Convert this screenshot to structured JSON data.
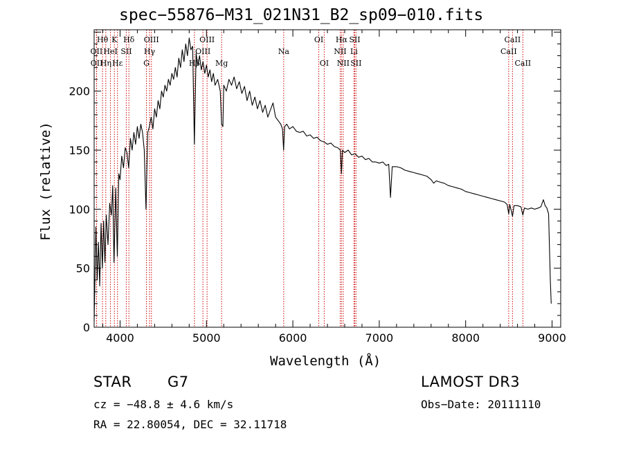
{
  "chart_data": {
    "type": "line",
    "title": "spec−55876−M31_021N31_B2_sp09−010.fits",
    "xlabel": "Wavelength (Å)",
    "ylabel": "Flux (relative)",
    "xlim": [
      3700,
      9100
    ],
    "ylim": [
      0,
      252
    ],
    "x_ticks": [
      4000,
      5000,
      6000,
      7000,
      8000,
      9000
    ],
    "y_ticks": [
      0,
      50,
      100,
      150,
      200
    ],
    "grid": false,
    "series": [
      {
        "name": "flux",
        "points": [
          [
            3700,
            5
          ],
          [
            3720,
            85
          ],
          [
            3735,
            40
          ],
          [
            3750,
            72
          ],
          [
            3765,
            35
          ],
          [
            3780,
            88
          ],
          [
            3795,
            50
          ],
          [
            3810,
            90
          ],
          [
            3825,
            55
          ],
          [
            3840,
            95
          ],
          [
            3860,
            70
          ],
          [
            3880,
            105
          ],
          [
            3900,
            95
          ],
          [
            3915,
            120
          ],
          [
            3930,
            55
          ],
          [
            3950,
            118
          ],
          [
            3968,
            60
          ],
          [
            3985,
            130
          ],
          [
            4000,
            125
          ],
          [
            4020,
            145
          ],
          [
            4040,
            135
          ],
          [
            4060,
            152
          ],
          [
            4080,
            148
          ],
          [
            4100,
            135
          ],
          [
            4120,
            160
          ],
          [
            4140,
            150
          ],
          [
            4160,
            165
          ],
          [
            4180,
            155
          ],
          [
            4200,
            170
          ],
          [
            4220,
            160
          ],
          [
            4240,
            172
          ],
          [
            4260,
            165
          ],
          [
            4280,
            150
          ],
          [
            4300,
            100
          ],
          [
            4320,
            165
          ],
          [
            4340,
            170
          ],
          [
            4360,
            178
          ],
          [
            4380,
            168
          ],
          [
            4400,
            185
          ],
          [
            4420,
            178
          ],
          [
            4440,
            192
          ],
          [
            4460,
            185
          ],
          [
            4480,
            200
          ],
          [
            4500,
            195
          ],
          [
            4520,
            205
          ],
          [
            4540,
            200
          ],
          [
            4560,
            210
          ],
          [
            4580,
            205
          ],
          [
            4600,
            215
          ],
          [
            4620,
            210
          ],
          [
            4640,
            220
          ],
          [
            4660,
            212
          ],
          [
            4680,
            228
          ],
          [
            4700,
            220
          ],
          [
            4720,
            235
          ],
          [
            4740,
            225
          ],
          [
            4760,
            240
          ],
          [
            4780,
            230
          ],
          [
            4800,
            245
          ],
          [
            4820,
            235
          ],
          [
            4840,
            238
          ],
          [
            4860,
            155
          ],
          [
            4880,
            232
          ],
          [
            4900,
            222
          ],
          [
            4920,
            230
          ],
          [
            4940,
            218
          ],
          [
            4960,
            225
          ],
          [
            4980,
            215
          ],
          [
            5000,
            222
          ],
          [
            5020,
            212
          ],
          [
            5040,
            218
          ],
          [
            5060,
            208
          ],
          [
            5080,
            215
          ],
          [
            5100,
            205
          ],
          [
            5130,
            210
          ],
          [
            5160,
            200
          ],
          [
            5175,
            172
          ],
          [
            5190,
            170
          ],
          [
            5200,
            205
          ],
          [
            5230,
            200
          ],
          [
            5260,
            210
          ],
          [
            5290,
            205
          ],
          [
            5320,
            212
          ],
          [
            5350,
            202
          ],
          [
            5380,
            208
          ],
          [
            5410,
            198
          ],
          [
            5440,
            204
          ],
          [
            5470,
            192
          ],
          [
            5500,
            200
          ],
          [
            5530,
            188
          ],
          [
            5560,
            195
          ],
          [
            5590,
            185
          ],
          [
            5620,
            192
          ],
          [
            5650,
            182
          ],
          [
            5680,
            188
          ],
          [
            5710,
            178
          ],
          [
            5740,
            184
          ],
          [
            5770,
            190
          ],
          [
            5800,
            178
          ],
          [
            5830,
            175
          ],
          [
            5860,
            172
          ],
          [
            5880,
            168
          ],
          [
            5893,
            150
          ],
          [
            5905,
            170
          ],
          [
            5930,
            172
          ],
          [
            5960,
            168
          ],
          [
            6000,
            170
          ],
          [
            6040,
            166
          ],
          [
            6080,
            165
          ],
          [
            6120,
            166
          ],
          [
            6160,
            162
          ],
          [
            6200,
            163
          ],
          [
            6240,
            160
          ],
          [
            6280,
            161
          ],
          [
            6320,
            158
          ],
          [
            6360,
            157
          ],
          [
            6400,
            155
          ],
          [
            6440,
            156
          ],
          [
            6480,
            153
          ],
          [
            6520,
            152
          ],
          [
            6550,
            150
          ],
          [
            6563,
            130
          ],
          [
            6575,
            150
          ],
          [
            6600,
            148
          ],
          [
            6640,
            150
          ],
          [
            6680,
            146
          ],
          [
            6720,
            147
          ],
          [
            6760,
            144
          ],
          [
            6800,
            145
          ],
          [
            6840,
            142
          ],
          [
            6880,
            143
          ],
          [
            6920,
            140
          ],
          [
            6960,
            140
          ],
          [
            7000,
            139
          ],
          [
            7040,
            140
          ],
          [
            7080,
            137
          ],
          [
            7110,
            138
          ],
          [
            7130,
            110
          ],
          [
            7150,
            136
          ],
          [
            7200,
            136
          ],
          [
            7250,
            135
          ],
          [
            7300,
            133
          ],
          [
            7350,
            132
          ],
          [
            7400,
            131
          ],
          [
            7450,
            130
          ],
          [
            7500,
            129
          ],
          [
            7550,
            128
          ],
          [
            7600,
            125
          ],
          [
            7630,
            122
          ],
          [
            7660,
            124
          ],
          [
            7700,
            123
          ],
          [
            7750,
            122
          ],
          [
            7800,
            120
          ],
          [
            7850,
            119
          ],
          [
            7900,
            118
          ],
          [
            7950,
            117
          ],
          [
            8000,
            115
          ],
          [
            8050,
            114
          ],
          [
            8100,
            113
          ],
          [
            8150,
            112
          ],
          [
            8200,
            111
          ],
          [
            8250,
            110
          ],
          [
            8300,
            109
          ],
          [
            8350,
            108
          ],
          [
            8400,
            107
          ],
          [
            8450,
            106
          ],
          [
            8480,
            104
          ],
          [
            8498,
            96
          ],
          [
            8510,
            104
          ],
          [
            8542,
            94
          ],
          [
            8560,
            103
          ],
          [
            8600,
            103
          ],
          [
            8640,
            102
          ],
          [
            8662,
            95
          ],
          [
            8680,
            101
          ],
          [
            8720,
            100
          ],
          [
            8760,
            101
          ],
          [
            8800,
            100
          ],
          [
            8840,
            101
          ],
          [
            8870,
            102
          ],
          [
            8900,
            108
          ],
          [
            8920,
            103
          ],
          [
            8940,
            101
          ],
          [
            8960,
            96
          ],
          [
            8980,
            40
          ],
          [
            8990,
            20
          ]
        ]
      }
    ],
    "annotations": [
      {
        "name": "Hθ",
        "x": 3797,
        "row": 1
      },
      {
        "name": "OII",
        "x": 3727,
        "row": 2
      },
      {
        "name": "OII",
        "x": 3729,
        "row": 3
      },
      {
        "name": "Hη",
        "x": 3835,
        "row": 3
      },
      {
        "name": "HeI",
        "x": 3889,
        "row": 2
      },
      {
        "name": "K",
        "x": 3934,
        "row": 1
      },
      {
        "name": "Hε",
        "x": 3970,
        "row": 3
      },
      {
        "name": "SII",
        "x": 4072,
        "row": 2
      },
      {
        "name": "Hδ",
        "x": 4102,
        "row": 1
      },
      {
        "name": "OIII",
        "x": 4363,
        "row": 1
      },
      {
        "name": "Hγ",
        "x": 4341,
        "row": 2
      },
      {
        "name": "G",
        "x": 4305,
        "row": 3
      },
      {
        "name": "Hβ",
        "x": 4861,
        "row": 3
      },
      {
        "name": "OIII",
        "x": 5007,
        "row": 1
      },
      {
        "name": "OIII",
        "x": 4959,
        "row": 2
      },
      {
        "name": "Mg",
        "x": 5175,
        "row": 3
      },
      {
        "name": "Na",
        "x": 5894,
        "row": 2
      },
      {
        "name": "OI",
        "x": 6300,
        "row": 1
      },
      {
        "name": "OI",
        "x": 6363,
        "row": 3
      },
      {
        "name": "Hα",
        "x": 6563,
        "row": 1
      },
      {
        "name": "NII",
        "x": 6548,
        "row": 2
      },
      {
        "name": "NII",
        "x": 6583,
        "row": 3
      },
      {
        "name": "SII",
        "x": 6716,
        "row": 1
      },
      {
        "name": "Li",
        "x": 6707,
        "row": 2
      },
      {
        "name": "SII",
        "x": 6731,
        "row": 3
      },
      {
        "name": "CaII",
        "x": 8542,
        "row": 1
      },
      {
        "name": "CaII",
        "x": 8498,
        "row": 2
      },
      {
        "name": "CaII",
        "x": 8662,
        "row": 3
      }
    ]
  },
  "info": {
    "class": "STAR",
    "subclass": "G7",
    "survey": "LAMOST DR3",
    "cz": "cz = −48.8 ± 4.6 km/s",
    "obs_date": "Obs−Date: 20111110",
    "coords": "RA =  22.80054, DEC =  32.11718"
  },
  "colors": {
    "axis": "#000000",
    "line": "#000000",
    "marker_lines": "#cc0000"
  }
}
